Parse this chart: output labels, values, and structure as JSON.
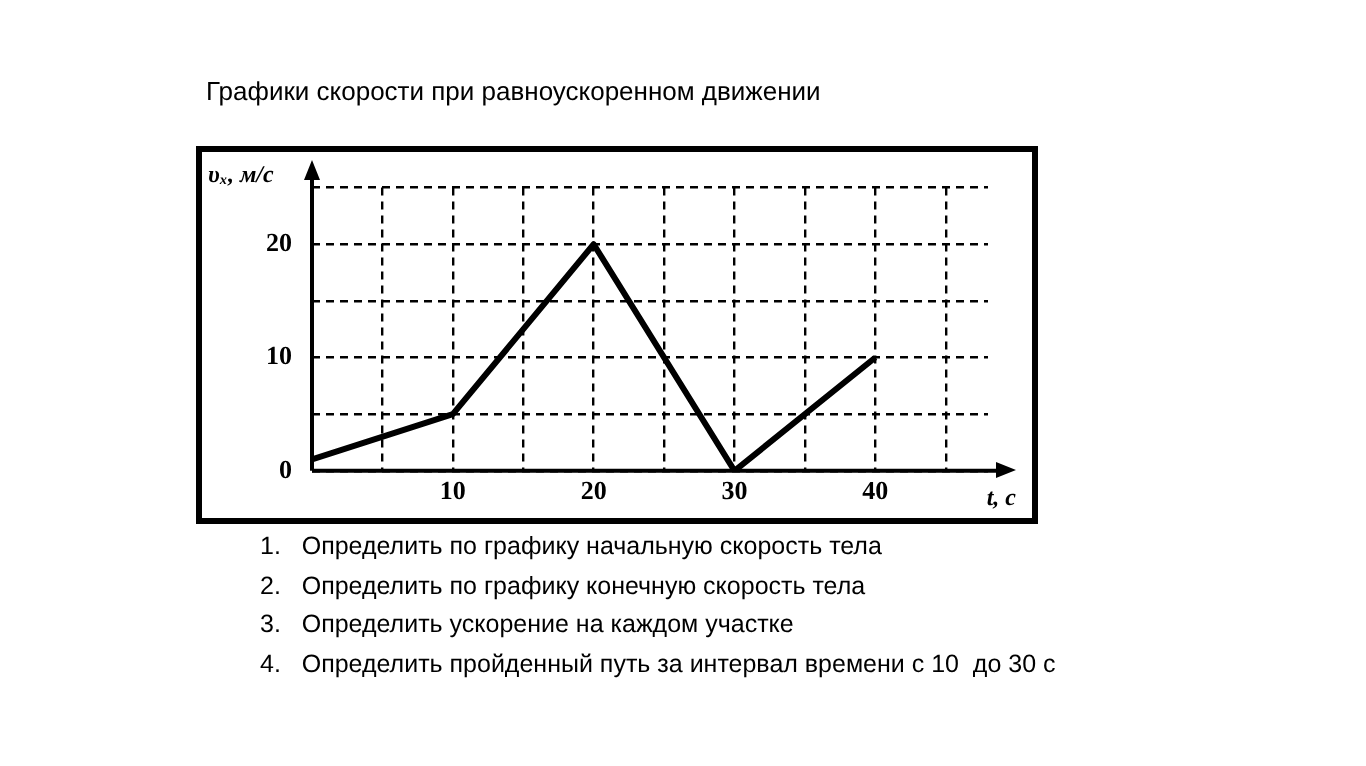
{
  "chart_data": {
    "type": "line",
    "title": "Графики скорости при равноускоренном движении",
    "xlabel": "t, с",
    "ylabel": "υₓ, м/с",
    "x": [
      0,
      10,
      20,
      30,
      40
    ],
    "series": [
      {
        "color": "#000000",
        "values": [
          1,
          5,
          20,
          0,
          10
        ]
      }
    ],
    "xlim": [
      0,
      48
    ],
    "ylim": [
      0,
      25
    ],
    "xticks": [
      {
        "value": 5,
        "label": null
      },
      10,
      {
        "value": 15,
        "label": null
      },
      20,
      {
        "value": 25,
        "label": null
      },
      30,
      {
        "value": 35,
        "label": null
      },
      40,
      {
        "value": 45,
        "label": null
      }
    ],
    "yticks": [
      0,
      {
        "value": 5,
        "label": null
      },
      10,
      {
        "value": 15,
        "label": null
      },
      20,
      {
        "value": 25,
        "label": null
      }
    ],
    "grid": true,
    "legend": false,
    "marker": "none",
    "line_style": "solid",
    "annotations": [
      "1.   Определить по графику начальную скорость тела",
      "2.   Определить по графику конечную скорость тела",
      "3.   Определить ускорение на каждом участке",
      "4.   Определить пройденный путь за интервал времени с 10  до 30 с"
    ]
  }
}
